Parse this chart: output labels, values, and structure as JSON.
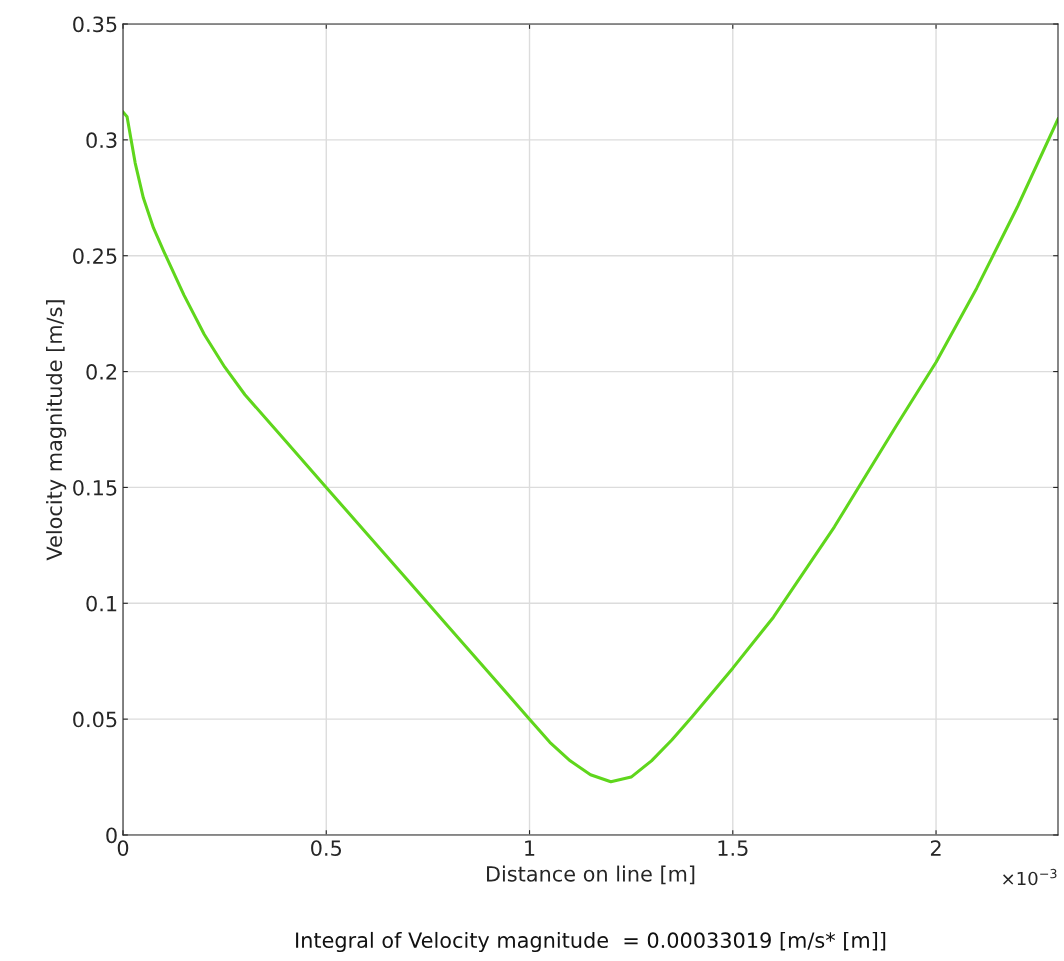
{
  "chart_data": {
    "type": "line",
    "xlabel": "Distance on line [m]",
    "ylabel": "Velocity magnitude [m/s]",
    "x": [
      0,
      0.01,
      0.03,
      0.05,
      0.075,
      0.1,
      0.15,
      0.2,
      0.25,
      0.3,
      0.4,
      0.5,
      0.6,
      0.7,
      0.8,
      0.9,
      1,
      1.05,
      1.1,
      1.15,
      1.2,
      1.25,
      1.3,
      1.35,
      1.4,
      1.5,
      1.6,
      1.75,
      1.9,
      2,
      2.1,
      2.2,
      2.3
    ],
    "series": [
      {
        "color": "#5fd61c",
        "values": [
          0.312,
          0.31,
          0.29,
          0.275,
          0.262,
          0.252,
          0.233,
          0.216,
          0.202,
          0.19,
          0.17,
          0.15,
          0.13,
          0.11,
          0.09,
          0.07,
          0.05,
          0.04,
          0.032,
          0.026,
          0.023,
          0.025,
          0.032,
          0.041,
          0.051,
          0.072,
          0.094,
          0.133,
          0.176,
          0.204,
          0.236,
          0.271,
          0.309
        ]
      }
    ],
    "xlim": [
      0,
      2.3
    ],
    "ylim": [
      0,
      0.35
    ],
    "xticks": [
      0,
      0.5,
      1,
      1.5,
      2
    ],
    "yticks": [
      0,
      0.05,
      0.1,
      0.15,
      0.2,
      0.25,
      0.3,
      0.35
    ],
    "grid": true,
    "legend": false,
    "marker": "none",
    "line_style": "solid",
    "annotations": [
      "×10$^{−3}$",
      "Integral of Velocity magnitude  = 0.00033019 [m/s* [m]]"
    ]
  }
}
